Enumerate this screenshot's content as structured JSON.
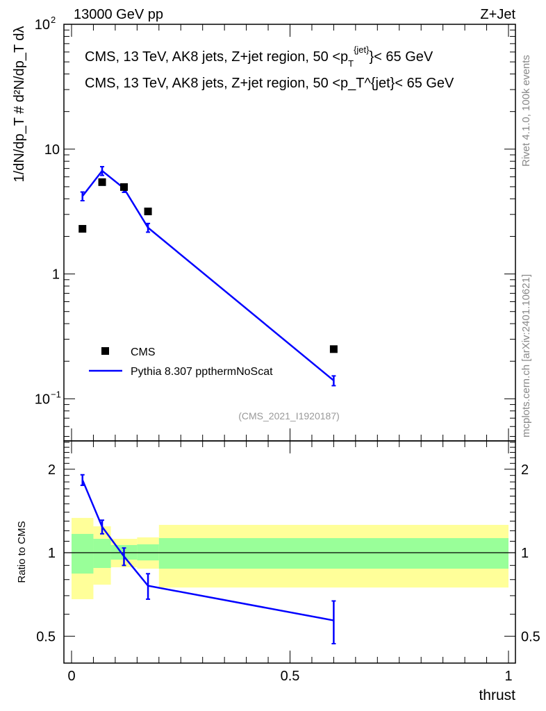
{
  "header": {
    "left": "13000 GeV pp",
    "right": "Z+Jet"
  },
  "side_texts": {
    "rivet": "Rivet 4.1.0,  100k events",
    "mcplots": "mcplots.cern.ch [arXiv:2401.10621]"
  },
  "colors": {
    "data": "#000000",
    "mc": "#0000ff",
    "band_outer": "#ffff99",
    "band_inner": "#99ff99"
  },
  "chart_data": [
    {
      "type": "line",
      "title": "CMS, 13 TeV, AK8 jets, Z+jet region, 50 <p_T^{jet}< 65 GeV",
      "title_parts": {
        "main": "CMS, 13 TeV, AK8 jets, Z+jet region, 50 <p",
        "sub": "T",
        "sup": "{jet}",
        "tail": "}< 65 GeV"
      },
      "ylabel": "1/dN/dp_T # d²N/dp_T dλ",
      "yscale": "log",
      "ylim": [
        0.046,
        100
      ],
      "xlim": [
        -0.02,
        1.02
      ],
      "yticks": [
        {
          "v": 0.1,
          "label": "10",
          "exp": "−1"
        },
        {
          "v": 1,
          "label": "1",
          "exp": ""
        },
        {
          "v": 10,
          "label": "10",
          "exp": ""
        },
        {
          "v": 100,
          "label": "10",
          "exp": "2"
        }
      ],
      "watermark": "(CMS_2021_I1920187)",
      "legend_position": "bottom-left",
      "series": [
        {
          "name": "CMS",
          "style": "markers",
          "x": [
            0.025,
            0.07,
            0.12,
            0.175,
            0.6
          ],
          "y": [
            2.3,
            5.44,
            4.97,
            3.17,
            0.25
          ]
        },
        {
          "name": "Pythia 8.307 ppthermNoScat",
          "style": "line",
          "x": [
            0.025,
            0.07,
            0.12,
            0.175,
            0.6
          ],
          "y": [
            4.2,
            6.7,
            4.85,
            2.35,
            0.14
          ],
          "err": [
            0.08,
            0.08,
            0.07,
            0.08,
            0.09
          ]
        }
      ]
    },
    {
      "type": "line",
      "ylabel": "Ratio to CMS",
      "xlabel": "thrust",
      "yscale": "log",
      "ylim": [
        0.4,
        2.53
      ],
      "xlim": [
        -0.02,
        1.02
      ],
      "yticks": [
        {
          "v": 0.5,
          "label": "0.5"
        },
        {
          "v": 1,
          "label": "1"
        },
        {
          "v": 2,
          "label": "2"
        }
      ],
      "xticks": [
        {
          "v": 0,
          "label": "0"
        },
        {
          "v": 0.5,
          "label": "0.5"
        },
        {
          "v": 1,
          "label": "1"
        }
      ],
      "bins": [
        0,
        0.05,
        0.09,
        0.15,
        0.2,
        1
      ],
      "band_outer": [
        [
          0.68,
          1.335
        ],
        [
          0.767,
          1.245
        ],
        [
          0.886,
          1.122
        ],
        [
          0.876,
          1.136
        ],
        [
          0.749,
          1.26
        ]
      ],
      "band_inner": [
        [
          0.841,
          1.169
        ],
        [
          0.881,
          1.122
        ],
        [
          0.944,
          1.066
        ],
        [
          0.938,
          1.072
        ],
        [
          0.876,
          1.129
        ]
      ],
      "series": [
        {
          "name": "Pythia 8.307 ppthermNoScat",
          "x": [
            0.025,
            0.07,
            0.12,
            0.175,
            0.6
          ],
          "y": [
            1.83,
            1.24,
            0.97,
            0.76,
            0.57
          ],
          "err": [
            0.08,
            0.07,
            0.07,
            0.08,
            0.1
          ]
        }
      ]
    }
  ]
}
